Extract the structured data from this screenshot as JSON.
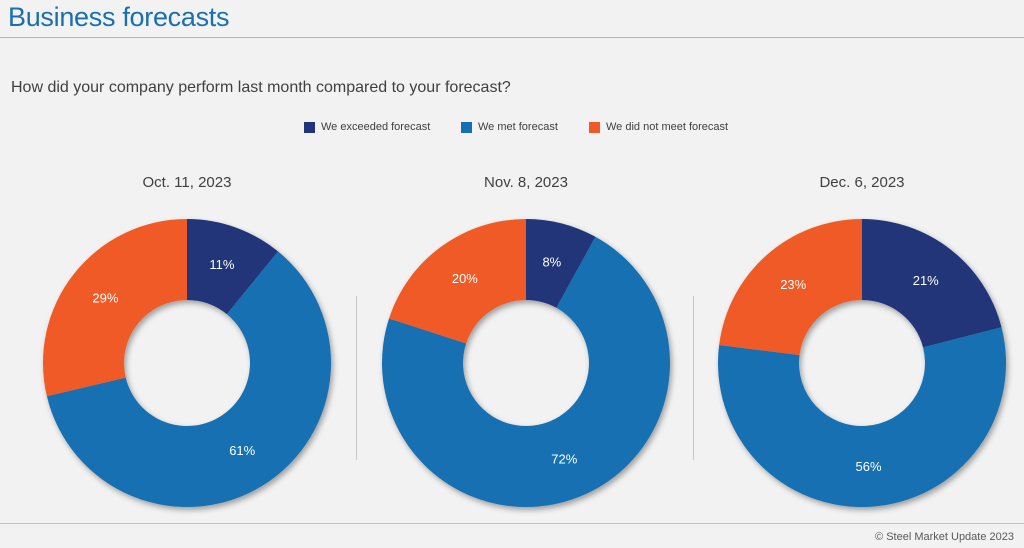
{
  "header": {
    "title": "Business forecasts"
  },
  "question": "How did your company perform last month compared to your forecast?",
  "colors": {
    "exceeded": "#203478",
    "met": "#1370b1",
    "not_met": "#ef5a27"
  },
  "legend": [
    {
      "label": "We exceeded forecast",
      "color": "#203478"
    },
    {
      "label": "We met forecast",
      "color": "#1370b1"
    },
    {
      "label": "We did not meet forecast",
      "color": "#ef5a27"
    }
  ],
  "chart_data": [
    {
      "type": "pie",
      "title": "Oct. 11, 2023",
      "categories": [
        "We exceeded forecast",
        "We met forecast",
        "We did not meet forecast"
      ],
      "values": [
        11,
        61,
        29
      ],
      "labels": [
        "11%",
        "61%",
        "29%"
      ]
    },
    {
      "type": "pie",
      "title": "Nov. 8, 2023",
      "categories": [
        "We exceeded forecast",
        "We met forecast",
        "We did not meet forecast"
      ],
      "values": [
        8,
        72,
        20
      ],
      "labels": [
        "8%",
        "72%",
        "20%"
      ]
    },
    {
      "type": "pie",
      "title": "Dec. 6, 2023",
      "categories": [
        "We exceeded forecast",
        "We met forecast",
        "We did not meet forecast"
      ],
      "values": [
        21,
        56,
        23
      ],
      "labels": [
        "21%",
        "56%",
        "23%"
      ]
    }
  ],
  "footer": {
    "copyright": "© Steel Market Update 2023"
  }
}
